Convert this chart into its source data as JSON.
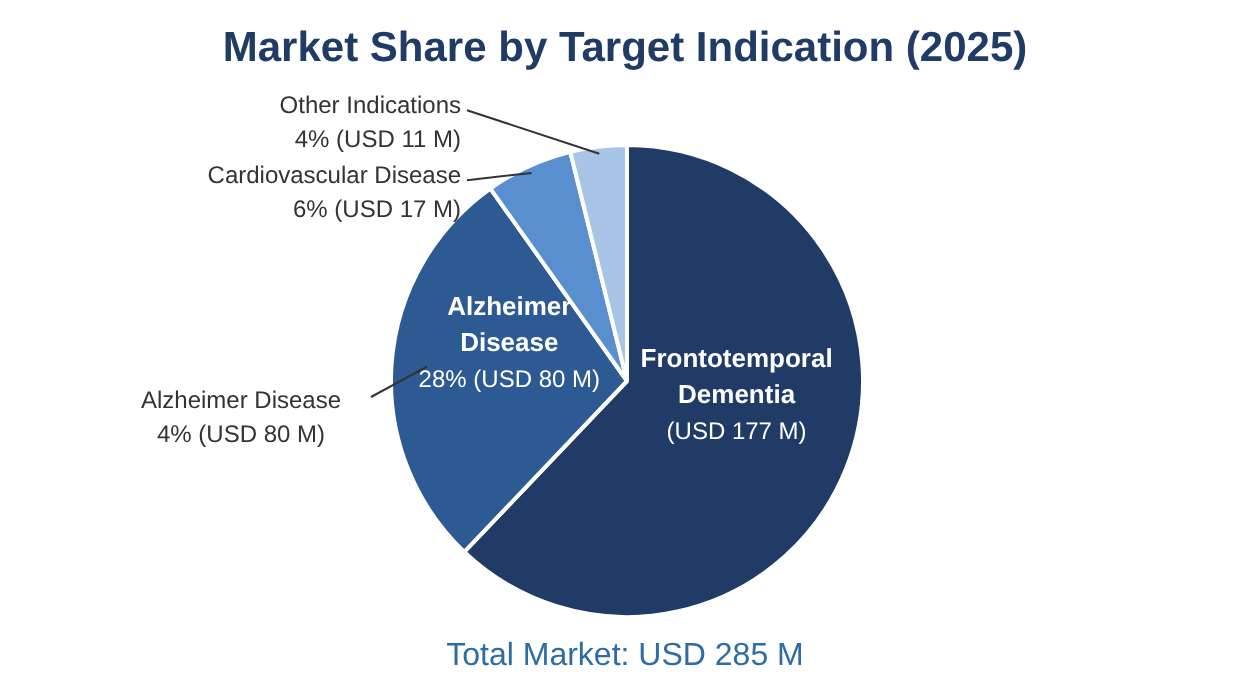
{
  "chart_data": {
    "type": "pie",
    "title": "Market Share by Target Indication (2025)",
    "categories": [
      "Frontotemporal Dementia",
      "Alzheimer Disease",
      "Cardiovascular Disease",
      "Other Indications"
    ],
    "values": [
      177,
      80,
      17,
      11
    ],
    "colors": [
      "#1f3b66",
      "#2d5a92",
      "#5a8fcf",
      "#a8c5e8"
    ],
    "value_labels": [
      "(USD 177 M)",
      "28% (USD 80 M)",
      "6% (USD 17 M)",
      "4% (USD 11 M)"
    ],
    "annotations": [
      "Alzheimer Disease\n4% (USD 80 M)",
      "Total Market: USD 285 M"
    ]
  }
}
